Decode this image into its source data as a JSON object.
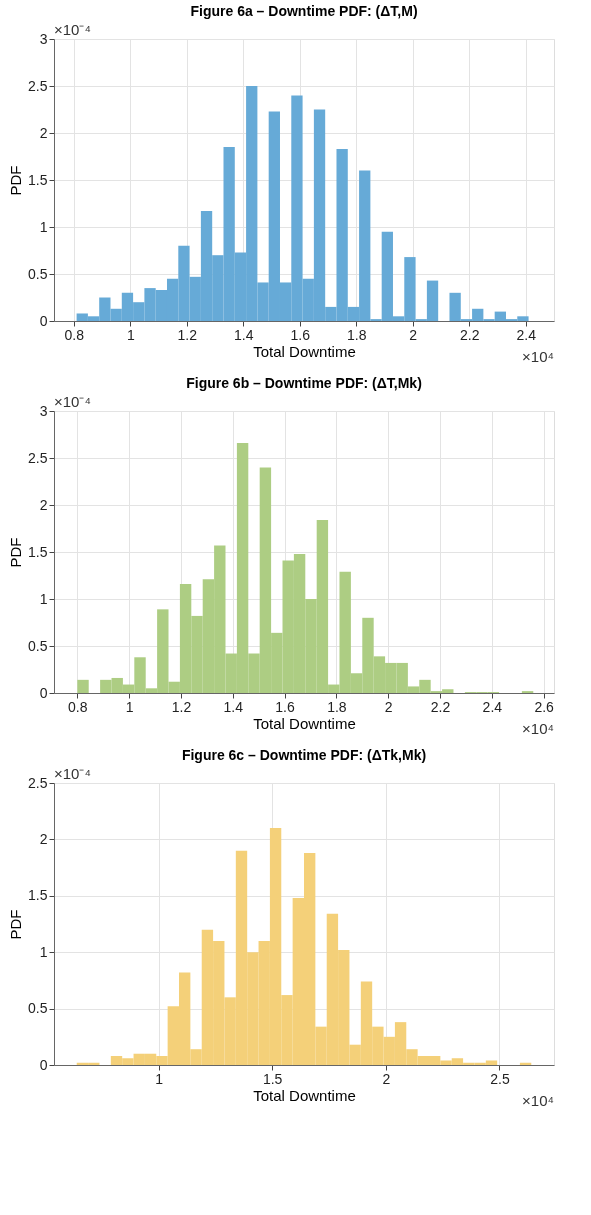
{
  "chart_data": [
    {
      "type": "histogram",
      "title": "Figure 6a  – Downtime PDF: (ΔT,M)",
      "xlabel": "Total Downtime",
      "ylabel": "PDF",
      "annotations": [
        "×10⁻⁴",
        "×10⁴"
      ],
      "color": "#66aad7",
      "bins": [
        0.81,
        0.85,
        0.89,
        0.93,
        0.97,
        1.01,
        1.05,
        1.09,
        1.13,
        1.17,
        1.21,
        1.25,
        1.29,
        1.33,
        1.37,
        1.41,
        1.45,
        1.49,
        1.53,
        1.57,
        1.61,
        1.65,
        1.69,
        1.73,
        1.77,
        1.81,
        1.85,
        1.89,
        1.93,
        1.97,
        2.01,
        2.05,
        2.09,
        2.13,
        2.17,
        2.21,
        2.25,
        2.29,
        2.33,
        2.37,
        2.41
      ],
      "values": [
        0.08,
        0.05,
        0.25,
        0.13,
        0.3,
        0.2,
        0.35,
        0.33,
        0.45,
        0.8,
        0.47,
        1.17,
        0.7,
        1.85,
        0.73,
        2.5,
        0.41,
        2.23,
        0.41,
        2.4,
        0.45,
        2.25,
        0.15,
        1.83,
        0.15,
        1.6,
        0.02,
        0.95,
        0.05,
        0.68,
        0.02,
        0.43,
        0,
        0.3,
        0.02,
        0.13,
        0.02,
        0.1,
        0.02,
        0.05
      ],
      "xlim": [
        0.73,
        2.5
      ],
      "xticks": [
        0.8,
        1,
        1.2,
        1.4,
        1.6,
        1.8,
        2,
        2.2,
        2.4
      ],
      "ylim": [
        0,
        3
      ],
      "yticks": [
        0,
        0.5,
        1,
        1.5,
        2,
        2.5,
        3
      ],
      "grid": true
    },
    {
      "type": "histogram",
      "title": "Figure 6b – Downtime PDF: (ΔT,Mk)",
      "xlabel": "Total Downtime",
      "ylabel": "PDF",
      "annotations": [
        "×10⁻⁴",
        "×10⁴"
      ],
      "color": "#adcd83",
      "bins": [
        0.8,
        0.844,
        0.888,
        0.932,
        0.976,
        1.02,
        1.064,
        1.108,
        1.152,
        1.196,
        1.24,
        1.284,
        1.328,
        1.372,
        1.416,
        1.46,
        1.504,
        1.548,
        1.592,
        1.636,
        1.68,
        1.724,
        1.768,
        1.812,
        1.856,
        1.9,
        1.944,
        1.988,
        2.032,
        2.076,
        2.12,
        2.164,
        2.208,
        2.252,
        2.296,
        2.34,
        2.384,
        2.428,
        2.472,
        2.516,
        2.56
      ],
      "values": [
        0.14,
        0,
        0.14,
        0.16,
        0.09,
        0.38,
        0.05,
        0.89,
        0.12,
        1.16,
        0.82,
        1.21,
        1.57,
        0.42,
        2.66,
        0.42,
        2.4,
        0.64,
        1.41,
        1.48,
        1.0,
        1.84,
        0.09,
        1.29,
        0.21,
        0.8,
        0.39,
        0.32,
        0.32,
        0.07,
        0.14,
        0.02,
        0.04,
        0,
        0.01,
        0.01,
        0.01,
        0,
        0,
        0.02
      ],
      "xlim": [
        0.71,
        2.64
      ],
      "xticks": [
        0.8,
        1,
        1.2,
        1.4,
        1.6,
        1.8,
        2,
        2.2,
        2.4,
        2.6
      ],
      "ylim": [
        0,
        3
      ],
      "yticks": [
        0,
        0.5,
        1,
        1.5,
        2,
        2.5,
        3
      ],
      "grid": true
    },
    {
      "type": "histogram",
      "title": "Figure 6c  – Downtime PDF: (ΔTk,Mk)",
      "xlabel": "Total Downtime",
      "ylabel": "PDF",
      "annotations": [
        "×10⁻⁴",
        "×10⁴"
      ],
      "color": "#f4d079",
      "bins": [
        0.64,
        0.69,
        0.74,
        0.79,
        0.84,
        0.89,
        0.94,
        0.99,
        1.04,
        1.09,
        1.14,
        1.19,
        1.24,
        1.29,
        1.34,
        1.39,
        1.44,
        1.49,
        1.54,
        1.59,
        1.64,
        1.69,
        1.74,
        1.79,
        1.84,
        1.89,
        1.94,
        1.99,
        2.04,
        2.09,
        2.14,
        2.19,
        2.24,
        2.29,
        2.34,
        2.39,
        2.44,
        2.49,
        2.54,
        2.59,
        2.64
      ],
      "values": [
        0.02,
        0.02,
        0,
        0.08,
        0.06,
        0.1,
        0.1,
        0.08,
        0.52,
        0.82,
        0.14,
        1.2,
        1.1,
        0.6,
        1.9,
        1.0,
        1.1,
        2.1,
        0.62,
        1.48,
        1.88,
        0.34,
        1.34,
        1.02,
        0.18,
        0.74,
        0.34,
        0.25,
        0.38,
        0.14,
        0.08,
        0.08,
        0.04,
        0.06,
        0.02,
        0.02,
        0.04,
        0,
        0,
        0.02
      ],
      "xlim": [
        0.54,
        2.74
      ],
      "xticks": [
        1,
        1.5,
        2,
        2.5
      ],
      "ylim": [
        0,
        2.5
      ],
      "yticks": [
        0,
        0.5,
        1,
        1.5,
        2,
        2.5
      ],
      "grid": true
    }
  ]
}
